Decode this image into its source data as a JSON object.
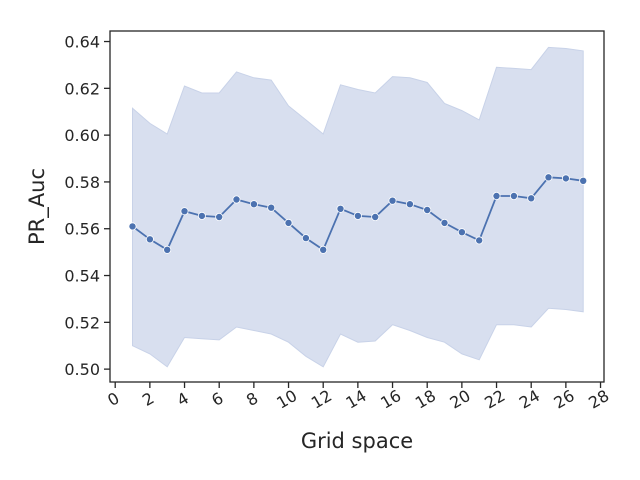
{
  "chart_data": {
    "type": "line",
    "xlabel": "Grid space",
    "ylabel": "PR_Auc",
    "xlim": [
      -0.3,
      28.2
    ],
    "ylim": [
      0.4945,
      0.6445
    ],
    "xticks": [
      0,
      2,
      4,
      6,
      8,
      10,
      12,
      14,
      16,
      18,
      20,
      22,
      24,
      26,
      28
    ],
    "yticks": [
      0.5,
      0.52,
      0.54,
      0.56,
      0.58,
      0.6,
      0.62,
      0.64
    ],
    "ytick_labels": [
      "0.50",
      "0.52",
      "0.54",
      "0.56",
      "0.58",
      "0.60",
      "0.62",
      "0.64"
    ],
    "xtick_labels": [
      "0",
      "2",
      "4",
      "6",
      "8",
      "10",
      "12",
      "14",
      "16",
      "18",
      "20",
      "22",
      "24",
      "26",
      "28"
    ],
    "grid": false,
    "colors": {
      "line": "#4c72b0",
      "band": "#c8d2e8",
      "axis": "#262626"
    },
    "series": [
      {
        "x": [
          1,
          2,
          3,
          4,
          5,
          6,
          7,
          8,
          9,
          10,
          11,
          12,
          13,
          14,
          15,
          16,
          17,
          18,
          19,
          20,
          21,
          22,
          23,
          24,
          25,
          26,
          27
        ],
        "y": [
          0.561,
          0.5555,
          0.551,
          0.5675,
          0.5655,
          0.565,
          0.5725,
          0.5705,
          0.569,
          0.5625,
          0.556,
          0.551,
          0.5685,
          0.5655,
          0.565,
          0.572,
          0.5705,
          0.568,
          0.5625,
          0.5585,
          0.555,
          0.574,
          0.574,
          0.573,
          0.582,
          0.5815,
          0.5805
        ],
        "ci_upper": [
          0.6115,
          0.605,
          0.6005,
          0.621,
          0.618,
          0.618,
          0.627,
          0.6245,
          0.6235,
          0.6125,
          0.6065,
          0.6005,
          0.6215,
          0.6195,
          0.618,
          0.625,
          0.6245,
          0.6225,
          0.6135,
          0.6105,
          0.6065,
          0.629,
          0.6285,
          0.628,
          0.6375,
          0.637,
          0.636
        ],
        "ci_lower": [
          0.51,
          0.5065,
          0.501,
          0.5135,
          0.513,
          0.5125,
          0.518,
          0.5165,
          0.515,
          0.5115,
          0.5055,
          0.501,
          0.515,
          0.5115,
          0.512,
          0.519,
          0.5165,
          0.5135,
          0.5115,
          0.5065,
          0.504,
          0.519,
          0.519,
          0.518,
          0.526,
          0.5255,
          0.5245
        ]
      }
    ]
  }
}
